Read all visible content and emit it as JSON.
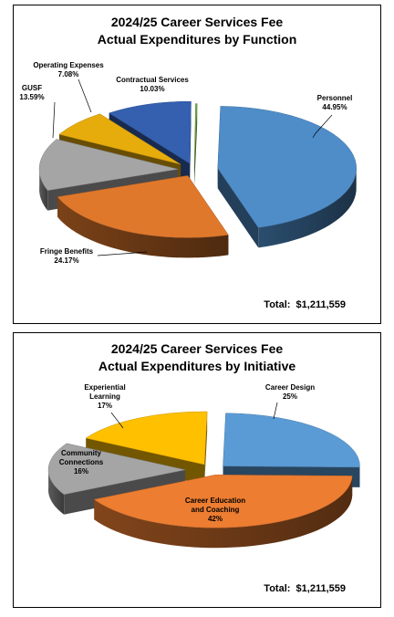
{
  "chart_data": [
    {
      "type": "pie",
      "title": "2024/25 Career Services Fee",
      "subtitle": "Actual Expenditures by Function",
      "total_label": "Total:",
      "total_value": "$1,211,559",
      "slices": [
        {
          "label": "Personnel",
          "pct_text": "44.95%",
          "value": 44.95,
          "color": "#4f8dc9"
        },
        {
          "label": "Fringe Benefits",
          "pct_text": "24.17%",
          "value": 24.17,
          "color": "#e0782c"
        },
        {
          "label": "GUSF",
          "pct_text": "13.59%",
          "value": 13.59,
          "color": "#a5a5a5"
        },
        {
          "label": "Operating Expenses",
          "pct_text": "7.08%",
          "value": 7.08,
          "color": "#e6ac0c"
        },
        {
          "label": "Contractual Services",
          "pct_text": "10.03%",
          "value": 10.03,
          "color": "#3560b0"
        },
        {
          "label": "",
          "pct_text": "",
          "value": 0.18,
          "color": "#70ad47"
        }
      ]
    },
    {
      "type": "pie",
      "title": "2024/25 Career Services Fee",
      "subtitle": "Actual Expenditures by Initiative",
      "total_label": "Total:",
      "total_value": "$1,211,559",
      "slices": [
        {
          "label": "Career Design",
          "pct_text": "25%",
          "value": 25,
          "color": "#5b9bd5"
        },
        {
          "label": "Career Education and Coaching",
          "pct_text": "42%",
          "value": 42,
          "color": "#ed7d31"
        },
        {
          "label": "Community Connections",
          "pct_text": "16%",
          "value": 16,
          "color": "#a5a5a5"
        },
        {
          "label": "Experiential Learning",
          "pct_text": "17%",
          "value": 17,
          "color": "#ffc000"
        }
      ]
    }
  ]
}
